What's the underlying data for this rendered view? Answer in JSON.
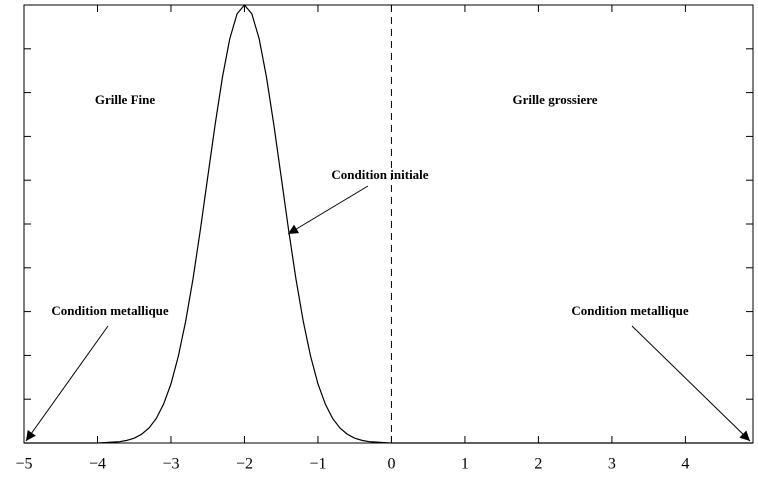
{
  "chart_data": {
    "type": "line",
    "x": [
      -5,
      -4,
      -3.9,
      -3.8,
      -3.7,
      -3.6,
      -3.5,
      -3.4,
      -3.3,
      -3.2,
      -3.1,
      -3.0,
      -2.9,
      -2.8,
      -2.7,
      -2.6,
      -2.5,
      -2.4,
      -2.3,
      -2.2,
      -2.1,
      -2.0,
      -1.9,
      -1.8,
      -1.7,
      -1.6,
      -1.5,
      -1.4,
      -1.3,
      -1.2,
      -1.1,
      -1.0,
      -0.9,
      -0.8,
      -0.7,
      -0.6,
      -0.5,
      -0.4,
      -0.3,
      -0.2,
      -0.1,
      0,
      4.92
    ],
    "series": [
      {
        "color": "#000000",
        "values": [
          0,
          0,
          0.001,
          0.002,
          0.003,
          0.006,
          0.011,
          0.02,
          0.034,
          0.056,
          0.089,
          0.135,
          0.198,
          0.278,
          0.375,
          0.487,
          0.607,
          0.726,
          0.835,
          0.923,
          0.98,
          1,
          0.98,
          0.923,
          0.835,
          0.726,
          0.607,
          0.487,
          0.375,
          0.278,
          0.198,
          0.135,
          0.089,
          0.056,
          0.034,
          0.02,
          0.011,
          0.006,
          0.003,
          0.002,
          0.001,
          0,
          0
        ]
      }
    ],
    "xlim": [
      -5,
      4.92
    ],
    "xticks": [
      {
        "value": -5,
        "label": "−5"
      },
      {
        "value": -4,
        "label": "−4"
      },
      {
        "value": -3,
        "label": "−3"
      },
      {
        "value": -2,
        "label": "−2"
      },
      {
        "value": -1,
        "label": "−1"
      },
      0,
      1,
      2,
      3,
      4
    ],
    "ylim": [
      0,
      1
    ],
    "yticks": [
      0,
      0.1,
      0.2,
      0.3,
      0.4,
      0.5,
      0.6,
      0.7,
      0.8,
      0.9,
      1
    ],
    "vline": 0,
    "annotations": [
      "Grille Fine",
      "Grille grossiere",
      "Condition initiale",
      "Condition metallique",
      "Condition metallique"
    ]
  }
}
